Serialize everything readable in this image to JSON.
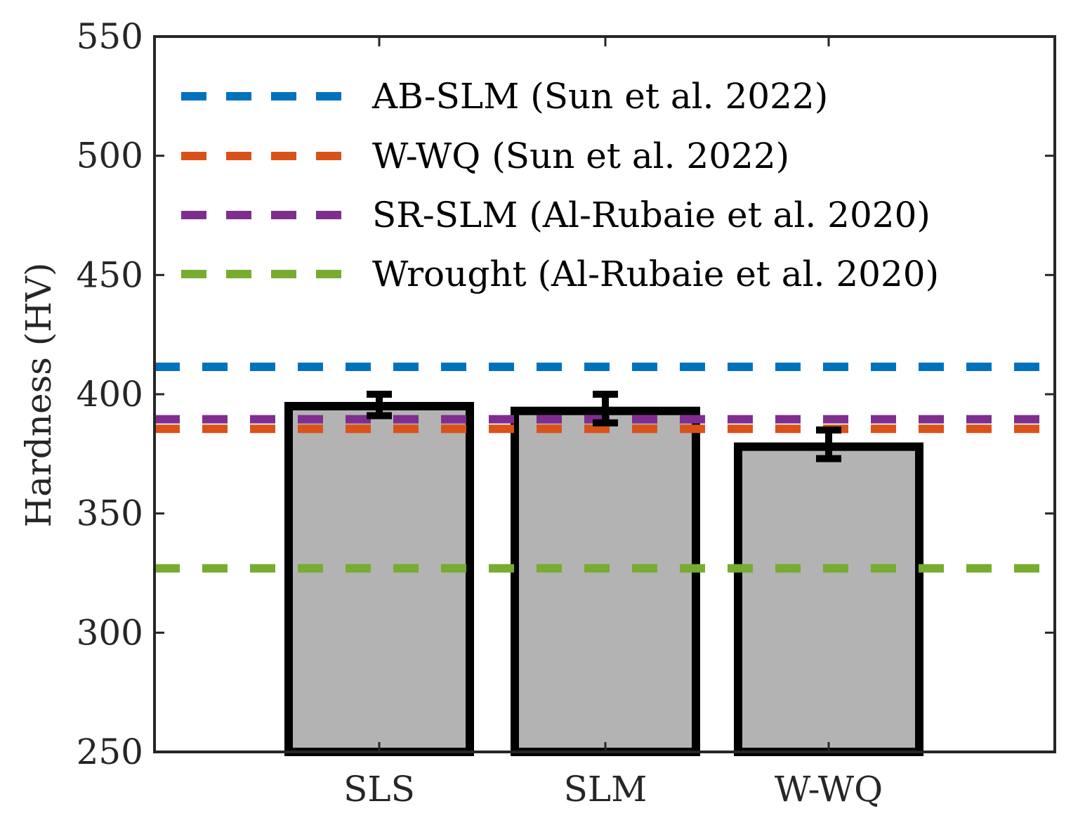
{
  "chart_data": {
    "type": "bar",
    "categories": [
      "SLS",
      "SLM",
      "W-WQ"
    ],
    "values": [
      395,
      393,
      378
    ],
    "error_low": [
      391,
      388,
      373
    ],
    "error_high": [
      400,
      400,
      385
    ],
    "ylabel": "Hardness (HV)",
    "xlabel": "",
    "title": "",
    "ylim": [
      250,
      550
    ],
    "yticks": [
      250,
      300,
      350,
      400,
      450,
      500,
      550
    ],
    "ytick_labels": [
      "250",
      "300",
      "350",
      "400",
      "450",
      "500",
      "550"
    ],
    "bar_fill": "#b3b3b3",
    "bar_edge": "#000000",
    "grid": false,
    "legend_position": "top",
    "reference_lines": [
      {
        "name": "AB-SLM (Sun et al. 2022)",
        "value": 411.5,
        "color": "#0072BD"
      },
      {
        "name": "W-WQ (Sun et al. 2022)",
        "value": 385.5,
        "color": "#D95319"
      },
      {
        "name": "SR-SLM (Al-Rubaie et al. 2020)",
        "value": 389.5,
        "color": "#7E2F8E"
      },
      {
        "name": "Wrought (Al-Rubaie et al. 2020)",
        "value": 327,
        "color": "#77AC30"
      }
    ]
  }
}
